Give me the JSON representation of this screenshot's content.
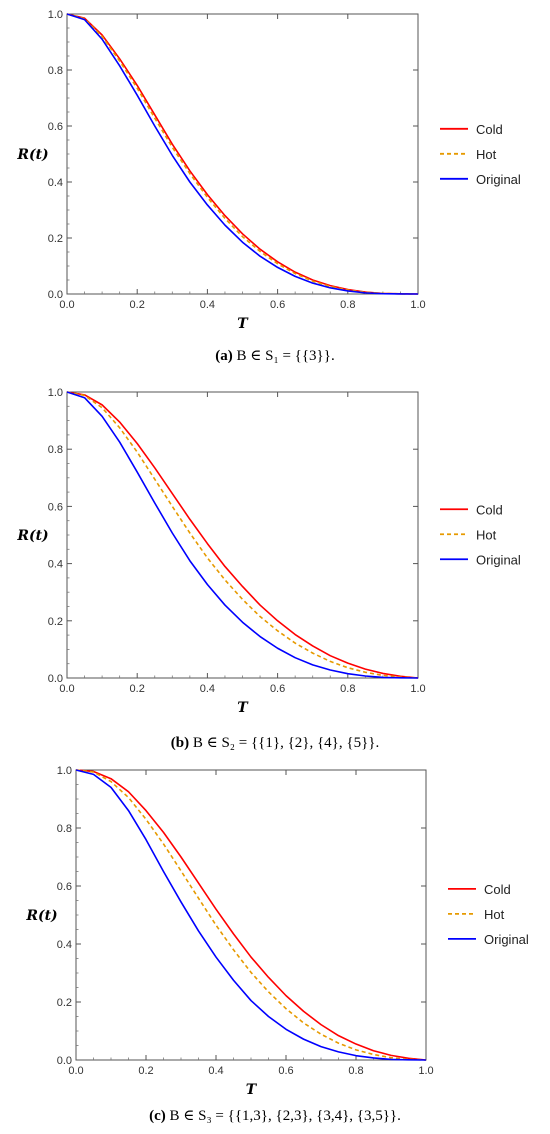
{
  "chart_data": [
    {
      "type": "line",
      "xlabel": "T",
      "ylabel": "R(t)",
      "xlim": [
        0,
        1
      ],
      "ylim": [
        0,
        1
      ],
      "xticks": [
        "0.0",
        "0.2",
        "0.4",
        "0.6",
        "0.8",
        "1.0"
      ],
      "yticks": [
        "0.0",
        "0.2",
        "0.4",
        "0.6",
        "0.8",
        "1.0"
      ],
      "legend_position": "right",
      "caption": {
        "label": "(a)",
        "text": "B ∈ S₁ = {{3}}."
      },
      "series": [
        {
          "name": "Cold",
          "color": "#ff0000",
          "dash": false,
          "x": [
            0,
            0.05,
            0.1,
            0.15,
            0.2,
            0.25,
            0.3,
            0.35,
            0.4,
            0.45,
            0.5,
            0.55,
            0.6,
            0.65,
            0.7,
            0.75,
            0.8,
            0.85,
            0.9,
            0.95,
            1.0
          ],
          "y": [
            1.0,
            0.985,
            0.925,
            0.84,
            0.745,
            0.64,
            0.535,
            0.44,
            0.355,
            0.28,
            0.215,
            0.16,
            0.115,
            0.078,
            0.05,
            0.03,
            0.016,
            0.007,
            0.002,
            0.0005,
            0
          ]
        },
        {
          "name": "Hot",
          "color": "#e69a00",
          "dash": true,
          "x": [
            0,
            0.05,
            0.1,
            0.15,
            0.2,
            0.25,
            0.3,
            0.35,
            0.4,
            0.45,
            0.5,
            0.55,
            0.6,
            0.65,
            0.7,
            0.75,
            0.8,
            0.85,
            0.9,
            0.95,
            1.0
          ],
          "y": [
            1.0,
            0.983,
            0.92,
            0.832,
            0.735,
            0.628,
            0.524,
            0.43,
            0.345,
            0.27,
            0.205,
            0.152,
            0.108,
            0.073,
            0.046,
            0.027,
            0.014,
            0.006,
            0.002,
            0.0004,
            0
          ]
        },
        {
          "name": "Original",
          "color": "#0000ff",
          "dash": false,
          "x": [
            0,
            0.05,
            0.1,
            0.15,
            0.2,
            0.25,
            0.3,
            0.35,
            0.4,
            0.45,
            0.5,
            0.55,
            0.6,
            0.65,
            0.7,
            0.75,
            0.8,
            0.85,
            0.9,
            0.95,
            1.0
          ],
          "y": [
            1.0,
            0.98,
            0.91,
            0.815,
            0.71,
            0.6,
            0.495,
            0.4,
            0.318,
            0.246,
            0.185,
            0.135,
            0.095,
            0.063,
            0.039,
            0.022,
            0.011,
            0.004,
            0.001,
            0.0002,
            0
          ]
        }
      ]
    },
    {
      "type": "line",
      "xlabel": "T",
      "ylabel": "R(t)",
      "xlim": [
        0,
        1
      ],
      "ylim": [
        0,
        1
      ],
      "xticks": [
        "0.0",
        "0.2",
        "0.4",
        "0.6",
        "0.8",
        "1.0"
      ],
      "yticks": [
        "0.0",
        "0.2",
        "0.4",
        "0.6",
        "0.8",
        "1.0"
      ],
      "legend_position": "right",
      "caption": {
        "label": "(b)",
        "text": "B ∈ S₂ = {{1}, {2}, {4}, {5}}."
      },
      "series": [
        {
          "name": "Cold",
          "color": "#ff0000",
          "dash": false,
          "x": [
            0,
            0.05,
            0.1,
            0.15,
            0.2,
            0.25,
            0.3,
            0.35,
            0.4,
            0.45,
            0.5,
            0.55,
            0.6,
            0.65,
            0.7,
            0.75,
            0.8,
            0.85,
            0.9,
            0.95,
            1.0
          ],
          "y": [
            1.0,
            0.99,
            0.955,
            0.895,
            0.82,
            0.735,
            0.645,
            0.555,
            0.47,
            0.39,
            0.32,
            0.255,
            0.2,
            0.152,
            0.112,
            0.078,
            0.052,
            0.031,
            0.016,
            0.006,
            0
          ]
        },
        {
          "name": "Hot",
          "color": "#e69a00",
          "dash": true,
          "x": [
            0,
            0.05,
            0.1,
            0.15,
            0.2,
            0.25,
            0.3,
            0.35,
            0.4,
            0.45,
            0.5,
            0.55,
            0.6,
            0.65,
            0.7,
            0.75,
            0.8,
            0.85,
            0.9,
            0.95,
            1.0
          ],
          "y": [
            1.0,
            0.988,
            0.945,
            0.875,
            0.79,
            0.695,
            0.6,
            0.507,
            0.42,
            0.343,
            0.275,
            0.215,
            0.165,
            0.122,
            0.087,
            0.058,
            0.036,
            0.02,
            0.009,
            0.003,
            0
          ]
        },
        {
          "name": "Original",
          "color": "#0000ff",
          "dash": false,
          "x": [
            0,
            0.05,
            0.1,
            0.15,
            0.2,
            0.25,
            0.3,
            0.35,
            0.4,
            0.45,
            0.5,
            0.55,
            0.6,
            0.65,
            0.7,
            0.75,
            0.8,
            0.85,
            0.9,
            0.95,
            1.0
          ],
          "y": [
            1.0,
            0.98,
            0.915,
            0.825,
            0.72,
            0.612,
            0.507,
            0.41,
            0.327,
            0.255,
            0.195,
            0.145,
            0.104,
            0.071,
            0.046,
            0.028,
            0.015,
            0.007,
            0.002,
            0.0005,
            0
          ]
        }
      ]
    },
    {
      "type": "line",
      "xlabel": "T",
      "ylabel": "R(t)",
      "xlim": [
        0,
        1
      ],
      "ylim": [
        0,
        1
      ],
      "xticks": [
        "0.0",
        "0.2",
        "0.4",
        "0.6",
        "0.8",
        "1.0"
      ],
      "yticks": [
        "0.0",
        "0.2",
        "0.4",
        "0.6",
        "0.8",
        "1.0"
      ],
      "legend_position": "right",
      "caption": {
        "label": "(c)",
        "text": "B ∈ S₃ = {{1,3}, {2,3}, {3,4}, {3,5}}."
      },
      "series": [
        {
          "name": "Cold",
          "color": "#ff0000",
          "dash": false,
          "x": [
            0,
            0.05,
            0.1,
            0.15,
            0.2,
            0.25,
            0.3,
            0.35,
            0.4,
            0.45,
            0.5,
            0.55,
            0.6,
            0.65,
            0.7,
            0.75,
            0.8,
            0.85,
            0.9,
            0.95,
            1.0
          ],
          "y": [
            1.0,
            0.995,
            0.97,
            0.925,
            0.86,
            0.785,
            0.7,
            0.61,
            0.52,
            0.435,
            0.355,
            0.285,
            0.222,
            0.168,
            0.122,
            0.084,
            0.055,
            0.032,
            0.016,
            0.006,
            0
          ]
        },
        {
          "name": "Hot",
          "color": "#e69a00",
          "dash": true,
          "x": [
            0,
            0.05,
            0.1,
            0.15,
            0.2,
            0.25,
            0.3,
            0.35,
            0.4,
            0.45,
            0.5,
            0.55,
            0.6,
            0.65,
            0.7,
            0.75,
            0.8,
            0.85,
            0.9,
            0.95,
            1.0
          ],
          "y": [
            1.0,
            0.993,
            0.96,
            0.905,
            0.83,
            0.745,
            0.652,
            0.558,
            0.465,
            0.38,
            0.302,
            0.235,
            0.177,
            0.128,
            0.089,
            0.058,
            0.035,
            0.019,
            0.008,
            0.002,
            0
          ]
        },
        {
          "name": "Original",
          "color": "#0000ff",
          "dash": false,
          "x": [
            0,
            0.05,
            0.1,
            0.15,
            0.2,
            0.25,
            0.3,
            0.35,
            0.4,
            0.45,
            0.5,
            0.55,
            0.6,
            0.65,
            0.7,
            0.75,
            0.8,
            0.85,
            0.9,
            0.95,
            1.0
          ],
          "y": [
            1.0,
            0.985,
            0.94,
            0.86,
            0.76,
            0.65,
            0.545,
            0.445,
            0.355,
            0.275,
            0.205,
            0.15,
            0.106,
            0.072,
            0.046,
            0.028,
            0.015,
            0.007,
            0.002,
            0.0005,
            0
          ]
        }
      ]
    }
  ]
}
